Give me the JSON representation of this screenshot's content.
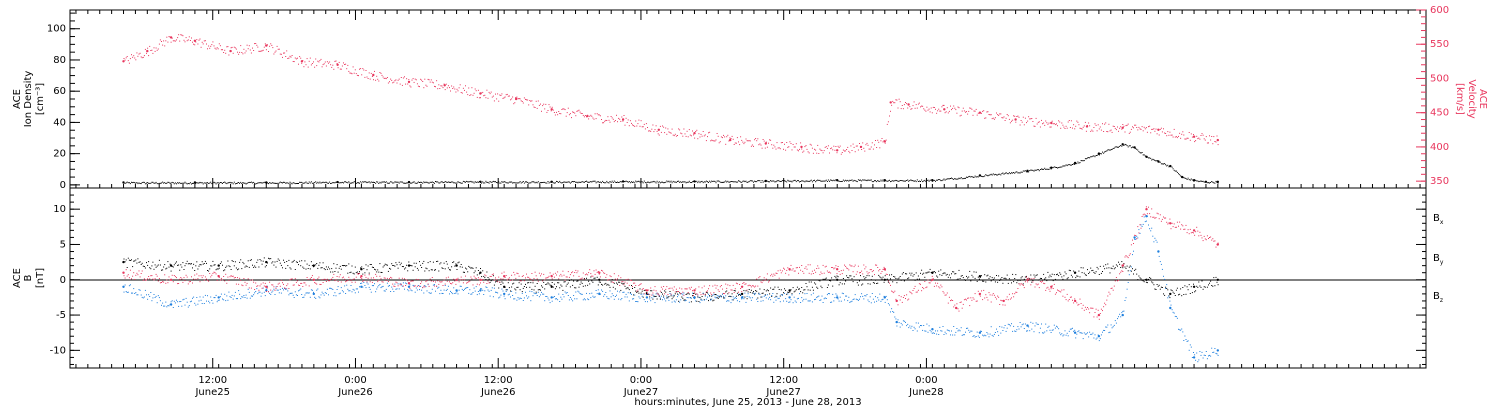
{
  "chart_data": [
    {
      "type": "scatter",
      "panel": "top",
      "ylabel_left": [
        "ACE",
        "Ion Density",
        "[cm⁻³]"
      ],
      "ylabel_right": [
        "ACE",
        "Velocity",
        "[km/s]"
      ],
      "ylim_left": [
        -2,
        112
      ],
      "ylim_right": [
        340,
        600
      ],
      "yticks_left": [
        0,
        20,
        40,
        60,
        80,
        100
      ],
      "yticks_right": [
        350,
        400,
        450,
        500,
        550,
        600
      ],
      "series": [
        {
          "axis": "left",
          "color": "#000000",
          "x_hours": [
            0,
            6,
            12,
            18,
            24,
            30,
            36,
            42,
            48,
            54,
            60,
            64,
            68,
            72,
            76,
            78,
            80,
            82,
            84,
            85,
            86,
            87,
            88,
            89,
            90,
            91,
            92
          ],
          "values": [
            1.5,
            1.5,
            1.5,
            1.8,
            1.8,
            2,
            2,
            2.2,
            2.2,
            2.5,
            3,
            3,
            3,
            6,
            9,
            11,
            14,
            20,
            26,
            24,
            18,
            15,
            12,
            5,
            3,
            2,
            2
          ]
        },
        {
          "axis": "right",
          "color": "#e8365d",
          "x_hours": [
            0,
            2,
            4,
            6,
            9,
            12,
            15,
            18,
            21,
            24,
            27,
            30,
            33,
            36,
            39,
            42,
            45,
            48,
            51,
            54,
            57,
            60,
            62,
            64,
            64.5,
            66,
            69,
            72,
            75,
            78,
            81,
            84,
            87,
            90,
            92
          ],
          "values": [
            525,
            540,
            560,
            555,
            540,
            548,
            525,
            520,
            505,
            495,
            490,
            478,
            470,
            455,
            445,
            440,
            425,
            420,
            410,
            405,
            400,
            395,
            400,
            408,
            465,
            462,
            455,
            450,
            440,
            435,
            430,
            428,
            425,
            415,
            410
          ]
        }
      ]
    },
    {
      "type": "scatter",
      "panel": "bottom",
      "ylabel_left": [
        "ACE",
        "B",
        "[nT]"
      ],
      "ylim_left": [
        -12.5,
        13
      ],
      "yticks_left": [
        -10,
        -5,
        0,
        5,
        10
      ],
      "legend": [
        "B",
        "B",
        "B"
      ],
      "legend_subscripts": [
        "x",
        "y",
        "z"
      ],
      "series": [
        {
          "legend_index": 0,
          "color": "#000000",
          "x_hours": [
            0,
            4,
            8,
            12,
            16,
            20,
            24,
            28,
            30,
            32,
            36,
            40,
            44,
            48,
            52,
            56,
            60,
            64,
            68,
            72,
            76,
            80,
            84,
            86,
            88,
            90,
            92
          ],
          "values": [
            2.5,
            2,
            2,
            2.5,
            2,
            1.5,
            2,
            2,
            1,
            -1,
            -1,
            0,
            -2,
            -2.5,
            -2,
            -1.5,
            0,
            0,
            1,
            0.5,
            0,
            1,
            2,
            0,
            -2,
            -1,
            0
          ]
        },
        {
          "legend_index": 1,
          "color": "#1e7fde",
          "x_hours": [
            0,
            4,
            8,
            12,
            16,
            20,
            24,
            28,
            30,
            32,
            36,
            40,
            44,
            48,
            52,
            56,
            60,
            64,
            65,
            68,
            72,
            76,
            80,
            82,
            84,
            85,
            86,
            87,
            88,
            90,
            92
          ],
          "values": [
            -1,
            -3.5,
            -2.5,
            -1.5,
            -2,
            -1,
            -1,
            -1.5,
            -1.5,
            -2,
            -2.5,
            -2,
            -2.5,
            -2.5,
            -2.5,
            -2.5,
            -2.5,
            -2.5,
            -6,
            -7,
            -7.5,
            -6.5,
            -7.5,
            -8,
            -5,
            6,
            9,
            4,
            -4,
            -11,
            -10
          ]
        },
        {
          "legend_index": 2,
          "color": "#e8365d",
          "x_hours": [
            0,
            4,
            8,
            12,
            16,
            20,
            24,
            28,
            30,
            32,
            36,
            40,
            44,
            48,
            52,
            56,
            60,
            64,
            65,
            68,
            70,
            72,
            74,
            76,
            78,
            80,
            82,
            84,
            86,
            88,
            90,
            92
          ],
          "values": [
            1,
            0,
            0.5,
            -1,
            0,
            0.5,
            -0.5,
            0,
            0,
            0.5,
            0.5,
            1,
            -1.5,
            -1.5,
            -1,
            1.5,
            1.5,
            1.5,
            -3,
            0,
            -4,
            -2,
            -3,
            0,
            -1,
            -3,
            -5,
            2,
            10,
            8,
            7,
            5
          ]
        }
      ]
    }
  ],
  "x_axis": {
    "ticks": [
      {
        "line1": "12:00",
        "line2": "June25"
      },
      {
        "line1": "0:00",
        "line2": "June26"
      },
      {
        "line1": "12:00",
        "line2": "June26"
      },
      {
        "line1": "0:00",
        "line2": "June27"
      },
      {
        "line1": "12:00",
        "line2": "June27"
      },
      {
        "line1": "0:00",
        "line2": "June28"
      }
    ],
    "title": "hours:minutes, June 25, 2013 - June 28, 2013"
  }
}
